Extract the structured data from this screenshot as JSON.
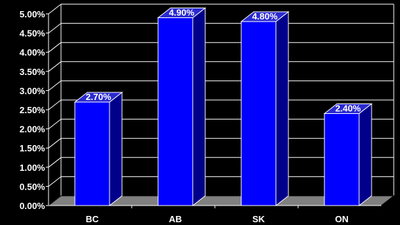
{
  "colors": {
    "background": "#000000",
    "bar_front": "#0000ff",
    "bar_side": "#00008b",
    "bar_top": "#2a2ad0",
    "bar_edge": "#ffffff",
    "grid": "#ffffff",
    "floor": "#808080",
    "text": "#ffffff"
  },
  "chart_data": {
    "type": "bar",
    "title": "",
    "xlabel": "",
    "ylabel": "",
    "categories": [
      "BC",
      "AB",
      "SK",
      "ON"
    ],
    "values": [
      2.7,
      4.9,
      4.8,
      2.4
    ],
    "data_labels": [
      "2.70%",
      "4.90%",
      "4.80%",
      "2.40%"
    ],
    "ylim": [
      0,
      5
    ],
    "y_ticks": [
      0,
      0.5,
      1,
      1.5,
      2,
      2.5,
      3,
      3.5,
      4,
      4.5,
      5
    ],
    "y_tick_labels": [
      "0.00%",
      "0.50%",
      "1.00%",
      "1.50%",
      "2.00%",
      "2.50%",
      "3.00%",
      "3.50%",
      "4.00%",
      "4.50%",
      "5.00%"
    ],
    "grid": true,
    "legend": "none",
    "style": "3d-bar"
  }
}
